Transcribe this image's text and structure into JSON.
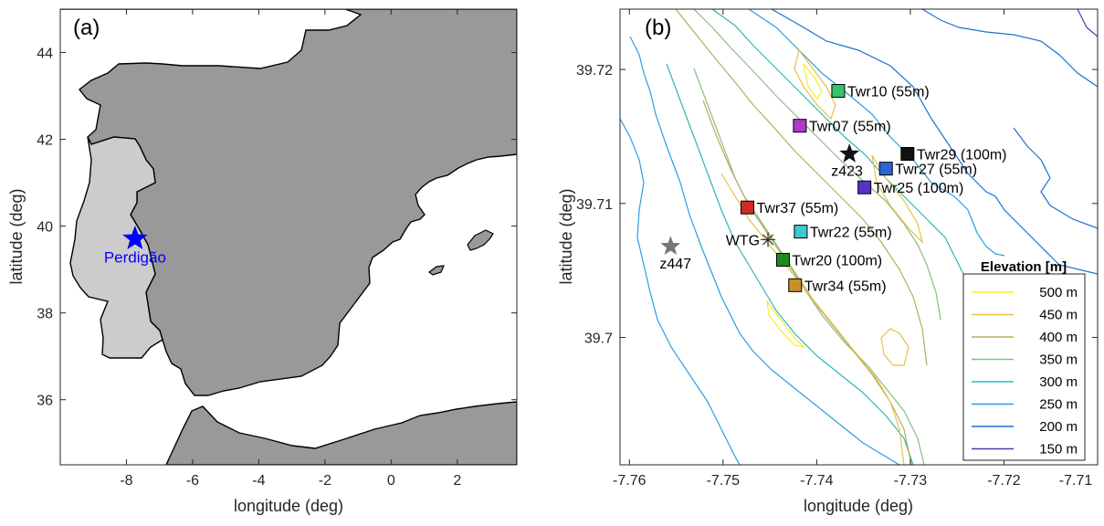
{
  "panel_a": {
    "tag": "(a)",
    "xlabel": "longitude (deg)",
    "ylabel": "latitude (deg)",
    "x_range": [
      -10,
      3.8
    ],
    "y_range": [
      34.5,
      45
    ],
    "x_ticks": [
      "-8",
      "-6",
      "-4",
      "-2",
      "0",
      "2"
    ],
    "x_tick_values": [
      -8,
      -6,
      -4,
      -2,
      0,
      2
    ],
    "y_ticks": [
      "36",
      "38",
      "40",
      "42",
      "44"
    ],
    "y_tick_values": [
      36,
      38,
      40,
      42,
      44
    ],
    "colors": {
      "sea": "#ffffff",
      "spain_land": "#999999",
      "portugal_land": "#cccccc",
      "marker": "#0000ff"
    },
    "marker": {
      "name": "Perdigão",
      "lon": -7.74,
      "lat": 39.71
    }
  },
  "panel_b": {
    "tag": "(b)",
    "xlabel": "longitude (deg)",
    "ylabel": "latitude (deg)",
    "x_range": [
      -7.761,
      -7.71
    ],
    "y_range": [
      39.6905,
      39.7245
    ],
    "x_ticks": [
      "-7.76",
      "-7.75",
      "-7.74",
      "-7.73",
      "-7.72",
      "-7.71"
    ],
    "x_tick_values": [
      -7.76,
      -7.75,
      -7.74,
      -7.73,
      -7.72,
      -7.71
    ],
    "y_ticks": [
      "39.72",
      "39.71",
      "39.7"
    ],
    "y_tick_values": [
      39.72,
      39.71,
      39.7
    ],
    "legend": {
      "title": "Elevation [m]",
      "entries": [
        {
          "label": "500 m",
          "color": "#f5ed2a"
        },
        {
          "label": "450 m",
          "color": "#e8c04a"
        },
        {
          "label": "400 m",
          "color": "#b9ab5e"
        },
        {
          "label": "350 m",
          "color": "#86bf83"
        },
        {
          "label": "300 m",
          "color": "#33b5b5"
        },
        {
          "label": "250 m",
          "color": "#2b9ee0"
        },
        {
          "label": "200 m",
          "color": "#1f6fd8"
        },
        {
          "label": "150 m",
          "color": "#4b3fa6"
        }
      ]
    },
    "sites": [
      {
        "label": "Twr10 (55m)",
        "lon": -7.7377,
        "lat": 39.7184,
        "color": "#35c46a",
        "marker": "square"
      },
      {
        "label": "Twr07 (55m)",
        "lon": -7.7418,
        "lat": 39.7158,
        "color": "#b039c9",
        "marker": "square"
      },
      {
        "label": "Twr29 (100m)",
        "lon": -7.7303,
        "lat": 39.7137,
        "color": "#111111",
        "marker": "square"
      },
      {
        "label": "Twr27 (55m)",
        "lon": -7.7326,
        "lat": 39.7126,
        "color": "#2f63d4",
        "marker": "square"
      },
      {
        "label": "Twr25 (100m)",
        "lon": -7.7349,
        "lat": 39.7112,
        "color": "#5533c8",
        "marker": "square"
      },
      {
        "label": "Twr37 (55m)",
        "lon": -7.7474,
        "lat": 39.7097,
        "color": "#d02a2a",
        "marker": "square"
      },
      {
        "label": "Twr22 (55m)",
        "lon": -7.7417,
        "lat": 39.7079,
        "color": "#3dc9cf",
        "marker": "square"
      },
      {
        "label": "Twr20 (100m)",
        "lon": -7.7436,
        "lat": 39.7058,
        "color": "#1f8a1f",
        "marker": "square"
      },
      {
        "label": "Twr34 (55m)",
        "lon": -7.7423,
        "lat": 39.7039,
        "color": "#c8902a",
        "marker": "square"
      },
      {
        "label": "z423",
        "lon": -7.7365,
        "lat": 39.7137,
        "color": "#111111",
        "marker": "star"
      },
      {
        "label": "z447",
        "lon": -7.7556,
        "lat": 39.7068,
        "color": "#777777",
        "marker": "star"
      },
      {
        "label": "WTG",
        "lon": -7.7452,
        "lat": 39.7073,
        "color": "#333333",
        "marker": "asterisk"
      }
    ]
  }
}
